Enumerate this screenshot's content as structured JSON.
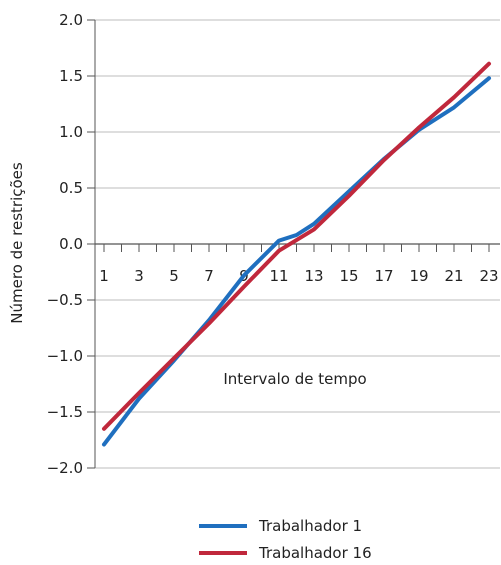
{
  "chart_data": {
    "type": "line",
    "xlabel": "Intervalo de tempo",
    "ylabel": "Número de restrições",
    "ylim": [
      -2.0,
      2.0
    ],
    "yticks": [
      "2.0",
      "1.5",
      "1.0",
      "0.5",
      "0.0",
      "−0.5",
      "−1.0",
      "−1.5",
      "−2.0"
    ],
    "ytick_values": [
      2.0,
      1.5,
      1.0,
      0.5,
      0.0,
      -0.5,
      -1.0,
      -1.5,
      -2.0
    ],
    "xlim": [
      1,
      23
    ],
    "xticks": [
      1,
      3,
      5,
      7,
      9,
      11,
      13,
      15,
      17,
      19,
      21,
      23
    ],
    "grid": "horizontal",
    "legend_position": "bottom",
    "series": [
      {
        "name": "Trabalhador 1",
        "color": "#1f6fbf",
        "x": [
          1,
          3,
          5,
          7,
          9,
          11,
          12,
          13,
          15,
          17,
          19,
          21,
          23
        ],
        "values": [
          -1.79,
          -1.38,
          -1.04,
          -0.68,
          -0.28,
          0.03,
          0.08,
          0.18,
          0.47,
          0.76,
          1.02,
          1.22,
          1.48
        ]
      },
      {
        "name": "Trabalhador 16",
        "color": "#c0283c",
        "x": [
          1,
          3,
          5,
          7,
          9,
          11,
          13,
          15,
          17,
          19,
          21,
          23
        ],
        "values": [
          -1.65,
          -1.33,
          -1.02,
          -0.71,
          -0.38,
          -0.06,
          0.13,
          0.43,
          0.75,
          1.04,
          1.31,
          1.61
        ]
      }
    ]
  }
}
